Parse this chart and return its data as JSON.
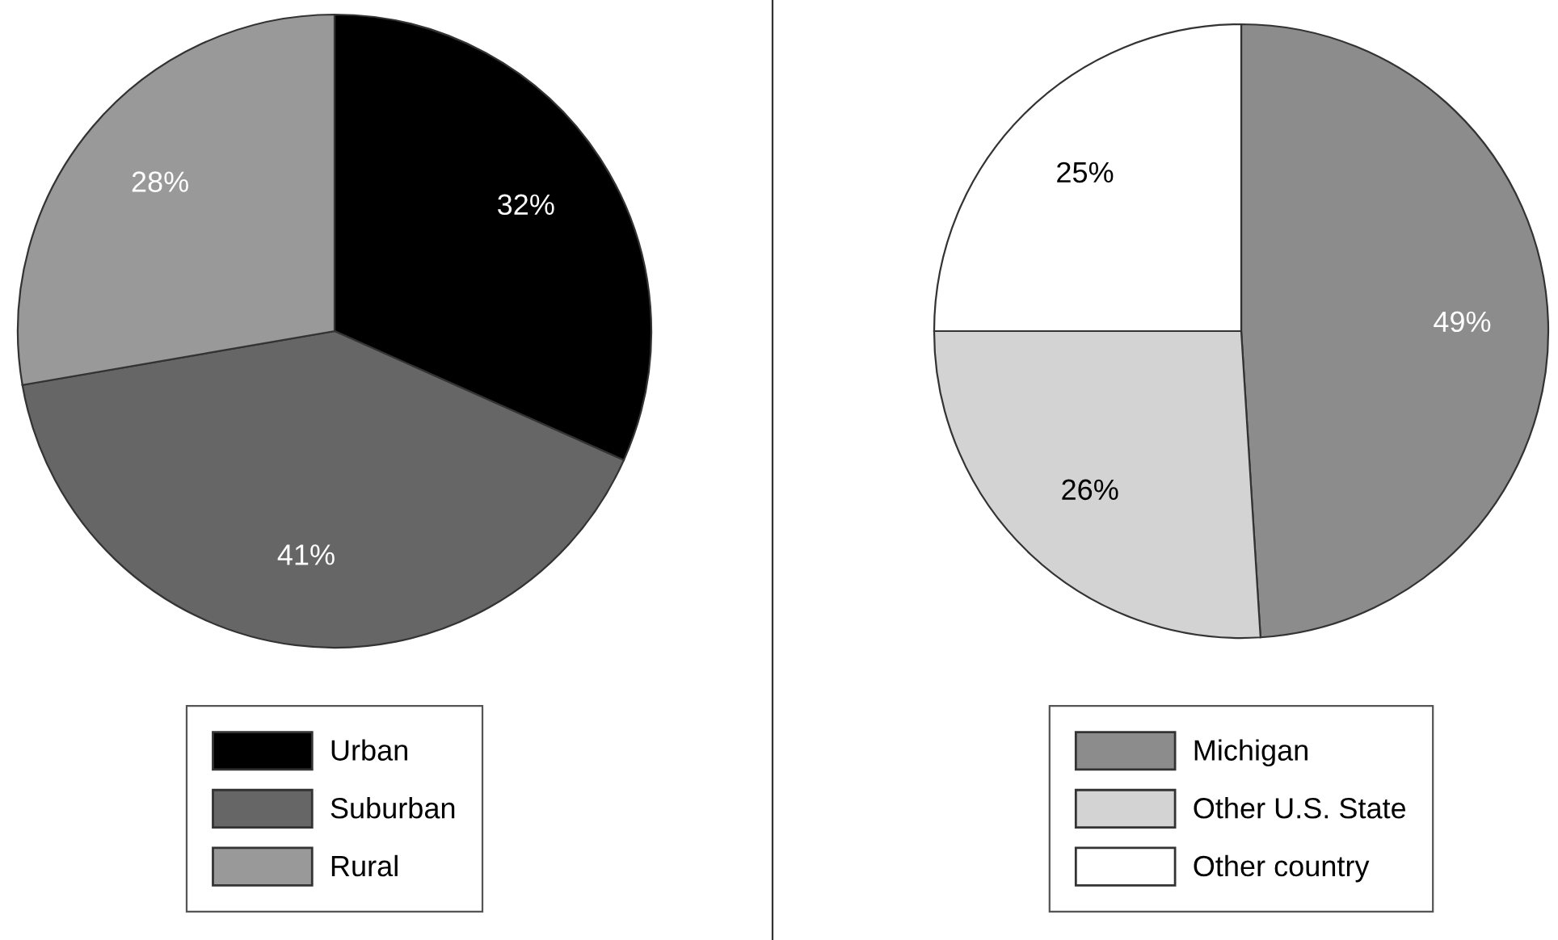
{
  "chart_data": [
    {
      "type": "pie",
      "categories": [
        "Urban",
        "Suburban",
        "Rural"
      ],
      "values": [
        32,
        41,
        28
      ],
      "colors": [
        "#000000",
        "#666666",
        "#999999"
      ],
      "value_labels": [
        "32%",
        "41%",
        "28%"
      ],
      "legend": "bottom"
    },
    {
      "type": "pie",
      "categories": [
        "Michigan",
        "Other U.S. State",
        "Other country"
      ],
      "values": [
        49,
        26,
        25
      ],
      "colors": [
        "#8c8c8c",
        "#d3d3d3",
        "#ffffff"
      ],
      "value_labels": [
        "49%",
        "26%",
        "25%"
      ],
      "legend": "bottom"
    }
  ]
}
